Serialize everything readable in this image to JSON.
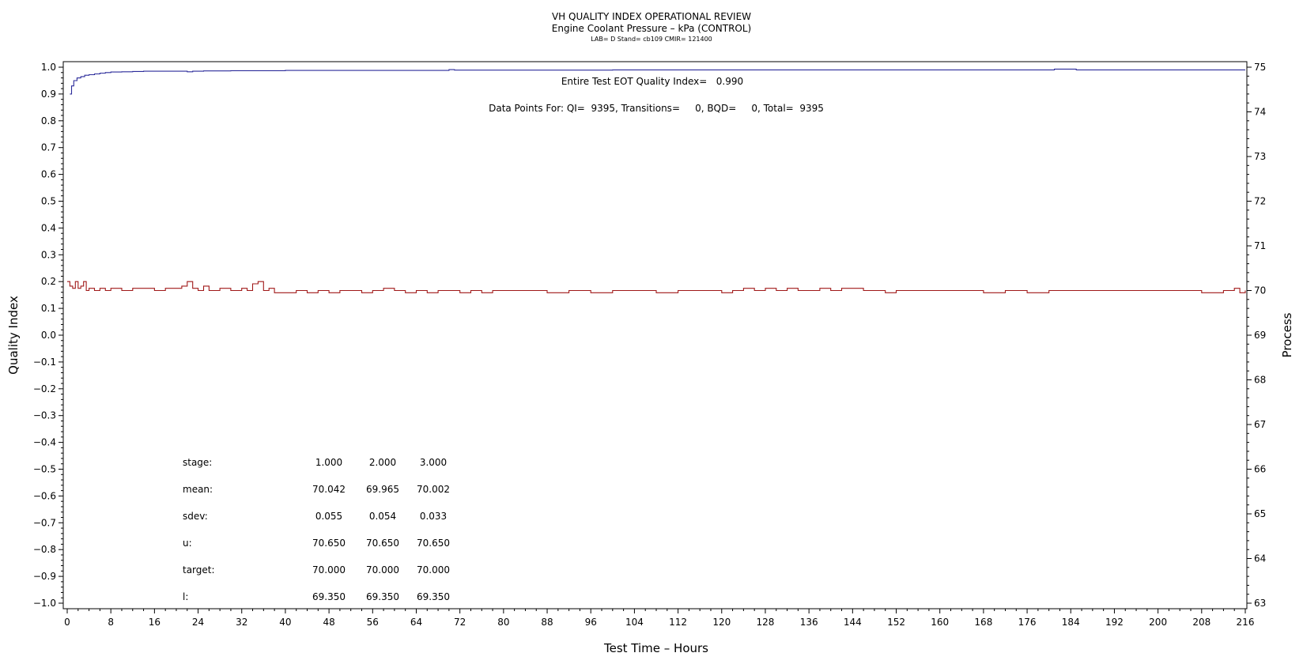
{
  "chart_data": {
    "type": "line",
    "title": "VH QUALITY INDEX OPERATIONAL REVIEW",
    "subtitle": "Engine Coolant Pressure – kPa (CONTROL)",
    "subtitle2": "LAB= D Stand= cb109 CMIR= 121400",
    "xlabel": "Test Time – Hours",
    "ylabel": "Quality Index",
    "y2label": "Process",
    "xlim": [
      0,
      216
    ],
    "ylim": [
      -1.0,
      1.0
    ],
    "y2lim": [
      63,
      75
    ],
    "x_ticks": [
      "0",
      "8",
      "16",
      "24",
      "32",
      "40",
      "48",
      "56",
      "64",
      "72",
      "80",
      "88",
      "96",
      "104",
      "112",
      "120",
      "128",
      "136",
      "144",
      "152",
      "160",
      "168",
      "176",
      "184",
      "192",
      "200",
      "208",
      "216"
    ],
    "y_ticks": [
      "1.0",
      "0.9",
      "0.8",
      "0.7",
      "0.6",
      "0.5",
      "0.4",
      "0.3",
      "0.2",
      "0.1",
      "0.0",
      "−0.1",
      "−0.2",
      "−0.3",
      "−0.4",
      "−0.5",
      "−0.6",
      "−0.7",
      "−0.8",
      "−0.9",
      "−1.0"
    ],
    "y2_ticks": [
      "75",
      "74",
      "73",
      "72",
      "71",
      "70",
      "69",
      "68",
      "67",
      "66",
      "65",
      "64",
      "63"
    ],
    "annotations": {
      "eot": "Entire Test EOT Quality Index=   0.990",
      "points": "Data Points For: QI=  9395, Transitions=     0, BQD=     0, Total=  9395"
    },
    "stats": {
      "headers": [
        "stage:",
        "1.000",
        "2.000",
        "3.000"
      ],
      "rows": [
        [
          "mean:",
          "70.042",
          "69.965",
          "70.002"
        ],
        [
          "sdev:",
          "0.055",
          "0.054",
          "0.033"
        ],
        [
          "u:",
          "70.650",
          "70.650",
          "70.650"
        ],
        [
          "target:",
          "70.000",
          "70.000",
          "70.000"
        ],
        [
          "l:",
          "69.350",
          "69.350",
          "69.350"
        ]
      ]
    },
    "series": [
      {
        "axis": "left",
        "color": "#2b2b9a",
        "x": [
          0.5,
          0.8,
          1.2,
          1.8,
          2.5,
          3.2,
          4,
          5,
          6,
          7,
          8,
          10,
          12,
          14,
          18,
          22,
          23,
          25,
          30,
          40,
          60,
          69,
          70,
          71,
          80,
          100,
          120,
          150,
          180,
          181,
          184,
          185,
          200,
          216
        ],
        "y": [
          0.9,
          0.93,
          0.95,
          0.96,
          0.965,
          0.97,
          0.972,
          0.975,
          0.978,
          0.98,
          0.982,
          0.983,
          0.984,
          0.985,
          0.985,
          0.983,
          0.985,
          0.986,
          0.987,
          0.988,
          0.988,
          0.988,
          0.991,
          0.989,
          0.989,
          0.99,
          0.99,
          0.99,
          0.99,
          0.993,
          0.993,
          0.99,
          0.99,
          0.99
        ]
      },
      {
        "axis": "right",
        "color": "#a01818",
        "x": [
          0,
          0.5,
          1,
          1.5,
          2,
          2.5,
          3,
          3.5,
          4,
          5,
          6,
          7,
          8,
          10,
          12,
          14,
          16,
          18,
          20,
          21,
          22,
          23,
          24,
          25,
          26,
          28,
          30,
          32,
          33,
          34,
          35,
          36,
          37,
          38,
          40,
          42,
          44,
          46,
          48,
          50,
          52,
          54,
          56,
          58,
          60,
          62,
          64,
          66,
          68,
          70,
          72,
          74,
          76,
          78,
          80,
          84,
          88,
          92,
          96,
          100,
          104,
          108,
          112,
          116,
          120,
          122,
          124,
          126,
          128,
          130,
          132,
          134,
          136,
          138,
          140,
          142,
          144,
          146,
          148,
          150,
          152,
          156,
          160,
          164,
          168,
          172,
          176,
          180,
          184,
          188,
          192,
          196,
          200,
          204,
          208,
          212,
          214,
          215,
          216
        ],
        "y": [
          70.2,
          70.1,
          70.05,
          70.2,
          70.05,
          70.1,
          70.2,
          70.0,
          70.05,
          70.0,
          70.05,
          70.0,
          70.05,
          70.0,
          70.05,
          70.05,
          70.0,
          70.05,
          70.05,
          70.1,
          70.2,
          70.05,
          70.0,
          70.1,
          70.0,
          70.05,
          70.0,
          70.05,
          70.0,
          70.15,
          70.2,
          70.0,
          70.05,
          69.95,
          69.95,
          70.0,
          69.95,
          70.0,
          69.95,
          70.0,
          70.0,
          69.95,
          70.0,
          70.05,
          70.0,
          69.95,
          70.0,
          69.95,
          70.0,
          70.0,
          69.95,
          70.0,
          69.95,
          70.0,
          70.0,
          70.0,
          69.95,
          70.0,
          69.95,
          70.0,
          70.0,
          69.95,
          70.0,
          70.0,
          69.95,
          70.0,
          70.05,
          70.0,
          70.05,
          70.0,
          70.05,
          70.0,
          70.0,
          70.05,
          70.0,
          70.05,
          70.05,
          70.0,
          70.0,
          69.95,
          70.0,
          70.0,
          70.0,
          70.0,
          69.95,
          70.0,
          69.95,
          70.0,
          70.0,
          70.0,
          70.0,
          70.0,
          70.0,
          70.0,
          69.95,
          70.0,
          70.05,
          69.95,
          70.0
        ]
      }
    ],
    "grid": false
  }
}
